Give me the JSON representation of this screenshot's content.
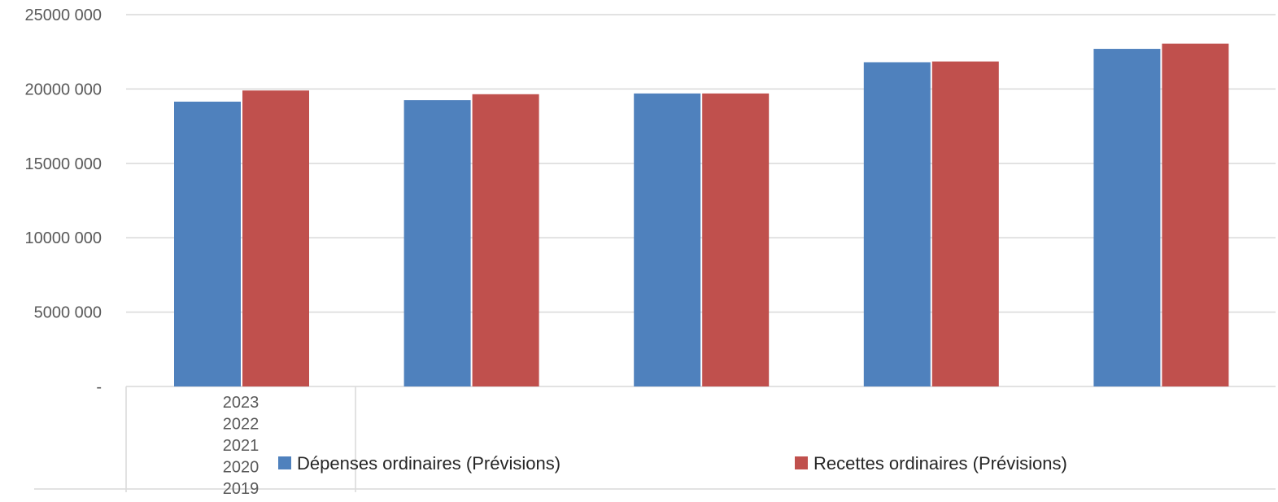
{
  "chart_data": {
    "type": "bar",
    "title": "",
    "xlabel": "",
    "ylabel": "",
    "categories": [
      "2019",
      "2020",
      "2021",
      "2022",
      "2023"
    ],
    "category_table_labels": [
      "2023",
      "2022",
      "2021",
      "2020",
      "2019"
    ],
    "series": [
      {
        "name": "Dépenses ordinaires (Prévisions)",
        "color": "#4f81bd",
        "values": [
          19150000,
          19250000,
          19700000,
          21800000,
          22700000
        ]
      },
      {
        "name": "Recettes ordinaires (Prévisions)",
        "color": "#c0504d",
        "values": [
          19900000,
          19650000,
          19700000,
          21850000,
          23050000
        ]
      }
    ],
    "ylim": [
      0,
      25000000
    ],
    "y_ticks": [
      0,
      5000000,
      10000000,
      15000000,
      20000000,
      25000000
    ],
    "y_tick_labels": [
      "-",
      "5000 000",
      "10000 000",
      "15000 000",
      "20000 000",
      "25000 000"
    ],
    "grid": true,
    "legend_position": "bottom"
  }
}
